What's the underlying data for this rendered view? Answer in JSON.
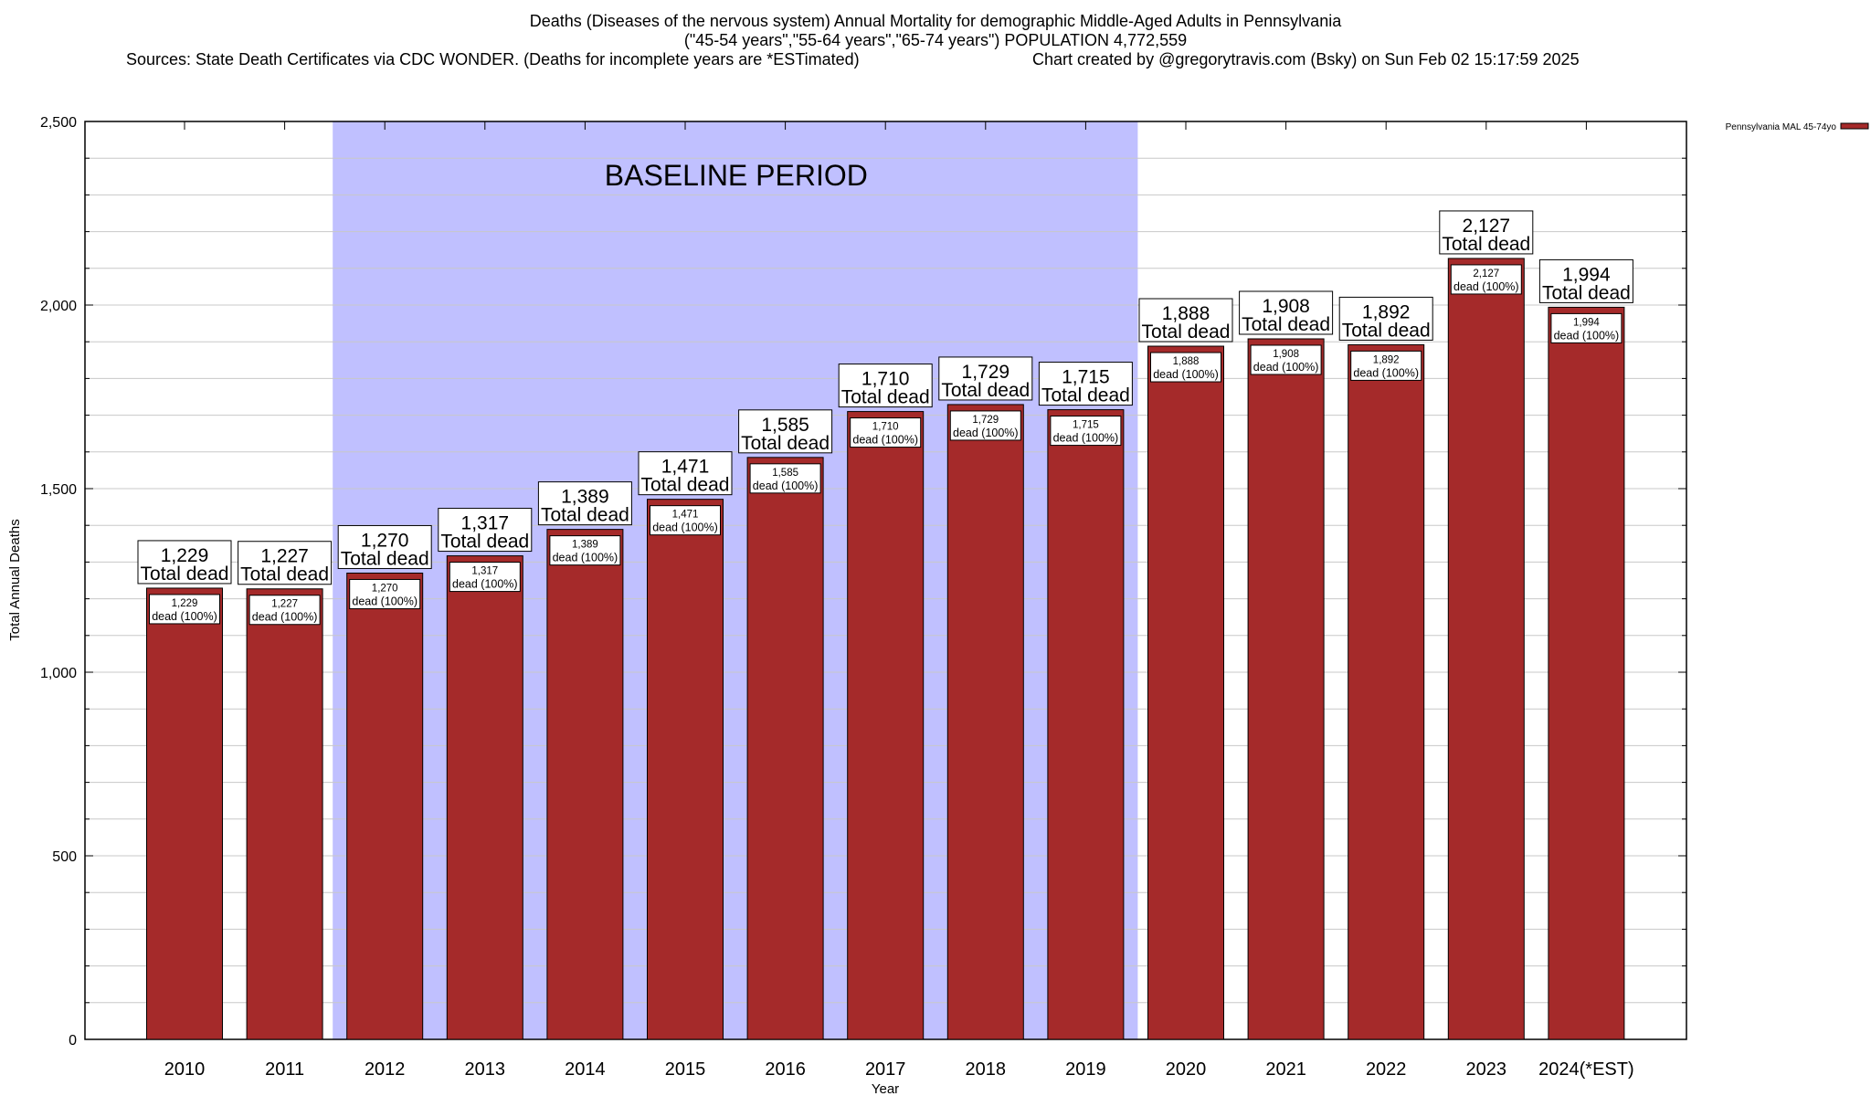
{
  "chart_data": {
    "type": "bar",
    "title_lines": [
      "Deaths (Diseases of the nervous system) Annual Mortality for demographic Middle-Aged Adults in Pennsylvania",
      "(\"45-54 years\",\"55-64 years\",\"65-74 years\") POPULATION 4,772,559"
    ],
    "sources": "Sources: State Death Certificates via CDC WONDER. (Deaths for incomplete years are *ESTimated)",
    "credit": "Chart created by @gregorytravis.com (Bsky) on Sun Feb 02 15:17:59 2025",
    "xlabel": "Year",
    "ylabel": "Total Annual Deaths",
    "ylim": [
      0,
      2500
    ],
    "yticks": [
      0,
      500,
      1000,
      1500,
      2000,
      2500
    ],
    "ytick_labels": [
      "0",
      "500",
      "1,000",
      "1,500",
      "2,000",
      "2,500"
    ],
    "grid": true,
    "categories": [
      "2010",
      "2011",
      "2012",
      "2013",
      "2014",
      "2015",
      "2016",
      "2017",
      "2018",
      "2019",
      "2020",
      "2021",
      "2022",
      "2023",
      "2024(*EST)"
    ],
    "values": [
      1229,
      1227,
      1270,
      1317,
      1389,
      1471,
      1585,
      1710,
      1729,
      1715,
      1888,
      1908,
      1892,
      2127,
      1994
    ],
    "value_labels": [
      "1,229",
      "1,227",
      "1,270",
      "1,317",
      "1,389",
      "1,471",
      "1,585",
      "1,710",
      "1,729",
      "1,715",
      "1,888",
      "1,908",
      "1,892",
      "2,127",
      "1,994"
    ],
    "total_label": "Total dead",
    "inner_label": "dead (100%)",
    "legend": {
      "label": "Pennsylvania MAL 45-74yo",
      "placement": "top-right outside"
    },
    "annotation": {
      "text": "BASELINE PERIOD",
      "from": "2012",
      "to": "2019"
    },
    "colors": {
      "bar": "#a52a2a",
      "baseline": "#c0c0ff",
      "grid": "#c8c8c8"
    }
  }
}
